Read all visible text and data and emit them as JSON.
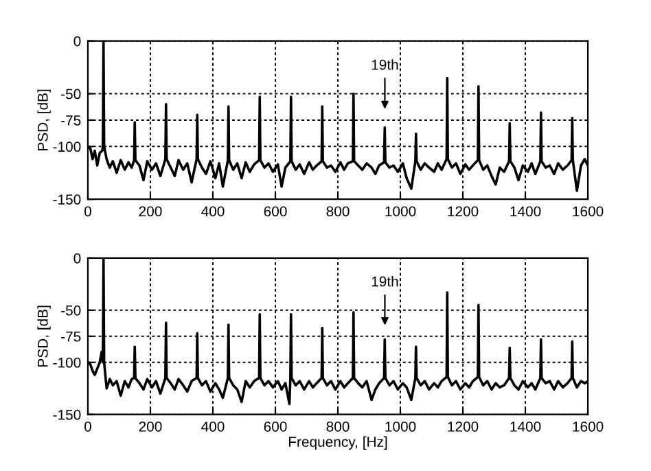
{
  "chart_data": [
    {
      "type": "line",
      "ylabel": "PSD, [dB]",
      "xlim": [
        0,
        1600
      ],
      "ylim": [
        -150,
        0
      ],
      "xticks": [
        0,
        200,
        400,
        600,
        800,
        1000,
        1200,
        1400,
        1600
      ],
      "yticks": [
        -150,
        -100,
        -75,
        -50,
        0
      ],
      "grid": true,
      "line_style": "solid",
      "annotations": [
        "19th"
      ],
      "series": [
        {
          "color": "#000000",
          "x": [
            0,
            8,
            15,
            22,
            30,
            38,
            46,
            48,
            50,
            52,
            60,
            70,
            80,
            92,
            105,
            118,
            130,
            140,
            148,
            150,
            152,
            165,
            178,
            190,
            205,
            218,
            232,
            248,
            250,
            252,
            265,
            278,
            290,
            305,
            318,
            332,
            348,
            350,
            352,
            365,
            378,
            392,
            408,
            420,
            432,
            448,
            450,
            452,
            465,
            478,
            492,
            505,
            518,
            532,
            548,
            550,
            552,
            565,
            578,
            592,
            608,
            620,
            632,
            648,
            650,
            652,
            665,
            678,
            692,
            708,
            720,
            732,
            748,
            750,
            752,
            765,
            778,
            792,
            808,
            820,
            832,
            848,
            850,
            852,
            865,
            878,
            892,
            908,
            920,
            932,
            948,
            950,
            952,
            965,
            978,
            992,
            1008,
            1020,
            1035,
            1048,
            1050,
            1052,
            1065,
            1078,
            1092,
            1108,
            1120,
            1132,
            1148,
            1150,
            1152,
            1165,
            1178,
            1192,
            1208,
            1220,
            1232,
            1248,
            1250,
            1252,
            1265,
            1278,
            1292,
            1305,
            1318,
            1332,
            1348,
            1350,
            1352,
            1365,
            1378,
            1392,
            1408,
            1420,
            1432,
            1448,
            1450,
            1452,
            1465,
            1478,
            1492,
            1505,
            1520,
            1535,
            1548,
            1550,
            1552,
            1565,
            1578,
            1590,
            1600
          ],
          "values": [
            -100,
            -102,
            -112,
            -104,
            -118,
            -106,
            -104,
            -100,
            0,
            -100,
            -112,
            -120,
            -114,
            -125,
            -113,
            -122,
            -115,
            -120,
            -113,
            -77,
            -113,
            -118,
            -132,
            -114,
            -122,
            -116,
            -128,
            -112,
            -60,
            -112,
            -120,
            -128,
            -113,
            -122,
            -116,
            -134,
            -112,
            -70,
            -112,
            -120,
            -126,
            -114,
            -130,
            -116,
            -138,
            -113,
            -62,
            -113,
            -122,
            -116,
            -130,
            -115,
            -124,
            -117,
            -113,
            -53,
            -113,
            -120,
            -116,
            -124,
            -117,
            -138,
            -120,
            -114,
            -53,
            -114,
            -122,
            -117,
            -126,
            -115,
            -122,
            -118,
            -114,
            -62,
            -114,
            -120,
            -118,
            -124,
            -115,
            -122,
            -116,
            -114,
            -50,
            -114,
            -118,
            -122,
            -116,
            -120,
            -126,
            -118,
            -115,
            -82,
            -115,
            -120,
            -118,
            -124,
            -116,
            -130,
            -140,
            -114,
            -88,
            -114,
            -122,
            -116,
            -120,
            -124,
            -116,
            -122,
            -112,
            -35,
            -112,
            -120,
            -116,
            -126,
            -117,
            -122,
            -118,
            -113,
            -43,
            -113,
            -122,
            -118,
            -128,
            -136,
            -120,
            -124,
            -114,
            -78,
            -114,
            -120,
            -132,
            -118,
            -124,
            -116,
            -126,
            -114,
            -68,
            -114,
            -120,
            -118,
            -126,
            -116,
            -122,
            -118,
            -113,
            -73,
            -113,
            -142,
            -118,
            -112,
            -118
          ]
        }
      ]
    },
    {
      "type": "line",
      "xlabel": "Frequency, [Hz]",
      "ylabel": "PSD, [dB]",
      "xlim": [
        0,
        1600
      ],
      "ylim": [
        -150,
        0
      ],
      "xticks": [
        0,
        200,
        400,
        600,
        800,
        1000,
        1200,
        1400,
        1600
      ],
      "yticks": [
        -150,
        -100,
        -75,
        -50,
        0
      ],
      "grid": true,
      "line_style": "solid",
      "annotations": [
        "19th"
      ],
      "series": [
        {
          "color": "#000000",
          "x": [
            0,
            8,
            15,
            22,
            30,
            38,
            44,
            48,
            50,
            52,
            60,
            70,
            80,
            92,
            105,
            118,
            130,
            140,
            148,
            150,
            152,
            165,
            178,
            190,
            205,
            218,
            232,
            248,
            250,
            252,
            265,
            278,
            290,
            305,
            318,
            332,
            348,
            350,
            352,
            365,
            378,
            392,
            408,
            420,
            432,
            448,
            450,
            452,
            465,
            478,
            492,
            505,
            518,
            532,
            548,
            550,
            552,
            565,
            578,
            592,
            608,
            620,
            632,
            645,
            648,
            650,
            652,
            665,
            678,
            692,
            708,
            720,
            732,
            748,
            750,
            752,
            765,
            778,
            792,
            808,
            820,
            832,
            848,
            850,
            852,
            865,
            878,
            892,
            908,
            920,
            932,
            948,
            950,
            952,
            965,
            978,
            992,
            1008,
            1020,
            1035,
            1048,
            1050,
            1052,
            1065,
            1078,
            1092,
            1108,
            1120,
            1132,
            1148,
            1150,
            1152,
            1165,
            1178,
            1192,
            1208,
            1220,
            1232,
            1248,
            1250,
            1252,
            1265,
            1278,
            1292,
            1305,
            1318,
            1332,
            1348,
            1350,
            1352,
            1365,
            1378,
            1392,
            1408,
            1420,
            1432,
            1448,
            1450,
            1452,
            1465,
            1478,
            1492,
            1505,
            1520,
            1535,
            1548,
            1550,
            1552,
            1565,
            1578,
            1590,
            1600
          ],
          "values": [
            -100,
            -102,
            -108,
            -112,
            -106,
            -100,
            -90,
            -100,
            0,
            -100,
            -125,
            -116,
            -122,
            -118,
            -132,
            -118,
            -124,
            -116,
            -115,
            -85,
            -115,
            -120,
            -126,
            -116,
            -124,
            -118,
            -130,
            -115,
            -62,
            -115,
            -120,
            -126,
            -116,
            -122,
            -128,
            -118,
            -115,
            -72,
            -115,
            -122,
            -118,
            -128,
            -120,
            -126,
            -134,
            -115,
            -64,
            -115,
            -122,
            -126,
            -138,
            -118,
            -124,
            -118,
            -115,
            -54,
            -115,
            -122,
            -118,
            -124,
            -118,
            -126,
            -120,
            -140,
            -115,
            -54,
            -115,
            -122,
            -118,
            -126,
            -118,
            -124,
            -120,
            -115,
            -67,
            -115,
            -122,
            -118,
            -126,
            -118,
            -124,
            -120,
            -115,
            -52,
            -115,
            -120,
            -124,
            -118,
            -136,
            -126,
            -120,
            -115,
            -78,
            -115,
            -122,
            -118,
            -126,
            -120,
            -124,
            -136,
            -115,
            -85,
            -115,
            -122,
            -118,
            -126,
            -120,
            -124,
            -118,
            -114,
            -33,
            -114,
            -122,
            -118,
            -126,
            -120,
            -124,
            -118,
            -114,
            -45,
            -114,
            -122,
            -118,
            -126,
            -120,
            -124,
            -122,
            -115,
            -86,
            -115,
            -122,
            -126,
            -118,
            -124,
            -120,
            -126,
            -115,
            -78,
            -115,
            -120,
            -118,
            -126,
            -118,
            -124,
            -120,
            -115,
            -80,
            -115,
            -124,
            -118,
            -120,
            -118
          ]
        }
      ]
    }
  ]
}
